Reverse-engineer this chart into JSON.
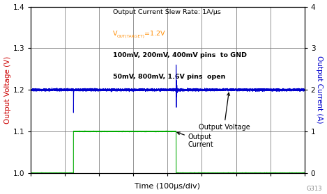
{
  "xlabel": "Time (100μs/div)",
  "ylabel_left": "Output Voltage (V)",
  "ylabel_right": "Output Current (A)",
  "ylim_left": [
    1.0,
    1.4
  ],
  "ylim_right": [
    0,
    4
  ],
  "yticks_left": [
    1.0,
    1.1,
    1.2,
    1.3,
    1.4
  ],
  "yticks_right": [
    0,
    1,
    2,
    3,
    4
  ],
  "ann_line1": "Output Current Slew Rate: 1A/μs",
  "ann_line2_orange": "V",
  "ann_line2_sub": "OUT(TARGET)",
  "ann_line2_rest": "=1.2V",
  "ann_line3": "100mV, 200mV, 400mV pins  to GND",
  "ann_line4": "50mV, 800mV, 1.6V pins  open",
  "label_voltage": "Output Voltage",
  "label_current": "Output\nCurrent",
  "voltage_color": "#0000CC",
  "current_color": "#00AA00",
  "bg_color": "#FFFFFF",
  "grid_color": "#777777",
  "watermark": "G313",
  "rise_div": 1.25,
  "fall_div": 4.25,
  "total_divs": 8
}
